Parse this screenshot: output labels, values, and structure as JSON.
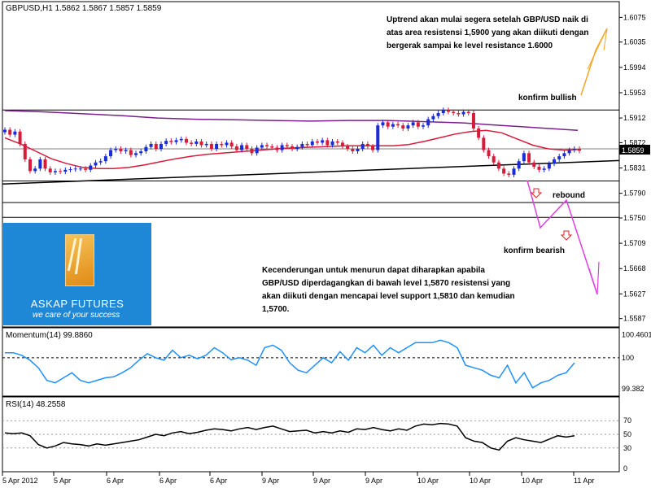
{
  "main_pane": {
    "title": "GBPUSD,H1  1.5862  1.5867  1.5857  1.5859",
    "current_price_label": "1.5859"
  },
  "annotations": {
    "uptrend_note": [
      "Uptrend akan mulai segera setelah GBP/USD naik di",
      "atas area resistensi 1,5900 yang akan diikuti dengan",
      "bergerak sampai ke level resistance 1.6000"
    ],
    "downtrend_note": [
      "Kecenderungan untuk menurun dapat diharapkan apabila",
      "GBP/USD diperdagangkan di bawah level 1,5870 resistensi yang",
      "akan diikuti dengan mencapai level support 1,5810 dan kemudian",
      "1,5700."
    ],
    "bullish_label": "konfirm bullish",
    "bearish_label": "konfirm bearish",
    "rebound_label": "rebound"
  },
  "logo": {
    "brand": "ASKAP FUTURES",
    "slogan": "we care of your success"
  },
  "chart_data": [
    {
      "type": "candlestick",
      "title": "GBPUSD,H1",
      "ohlc_header": {
        "open": 1.5862,
        "high": 1.5867,
        "low": 1.5857,
        "close": 1.5859
      },
      "ylim": [
        1.558,
        1.609
      ],
      "y_ticks": [
        "1.6075",
        "1.6035",
        "1.5994",
        "1.5953",
        "1.5912",
        "1.5872",
        "1.5831",
        "1.5790",
        "1.5750",
        "1.5709",
        "1.5668",
        "1.5627",
        "1.5587"
      ],
      "x_ticks": [
        "5 Apr 2012",
        "5 Apr",
        "6 Apr",
        "6 Apr",
        "6 Apr",
        "9 Apr",
        "9 Apr",
        "9 Apr",
        "10 Apr",
        "10 Apr",
        "10 Apr",
        "11 Apr"
      ],
      "closes": [
        1.5893,
        1.5885,
        1.589,
        1.587,
        1.5845,
        1.5826,
        1.583,
        1.5845,
        1.583,
        1.5824,
        1.5826,
        1.5825,
        1.5828,
        1.5829,
        1.583,
        1.583,
        1.5828,
        1.5835,
        1.584,
        1.5842,
        1.585,
        1.586,
        1.5862,
        1.5858,
        1.586,
        1.5852,
        1.5855,
        1.5858,
        1.5865,
        1.587,
        1.5862,
        1.587,
        1.5875,
        1.5873,
        1.5876,
        1.5878,
        1.5872,
        1.587,
        1.5874,
        1.5868,
        1.587,
        1.5862,
        1.587,
        1.5868,
        1.5872,
        1.5866,
        1.586,
        1.5868,
        1.5862,
        1.5855,
        1.5864,
        1.5868,
        1.5866,
        1.5864,
        1.586,
        1.5868,
        1.5866,
        1.5862,
        1.5865,
        1.587,
        1.5868,
        1.5874,
        1.5872,
        1.5876,
        1.5868,
        1.5874,
        1.5872,
        1.5866,
        1.5862,
        1.5858,
        1.5862,
        1.587,
        1.5866,
        1.586,
        1.59,
        1.5905,
        1.5898,
        1.5902,
        1.59,
        1.5895,
        1.59,
        1.5905,
        1.5898,
        1.59,
        1.591,
        1.5915,
        1.592,
        1.5925,
        1.5922,
        1.592,
        1.5918,
        1.5922,
        1.592,
        1.5895,
        1.588,
        1.586,
        1.585,
        1.584,
        1.583,
        1.5822,
        1.582,
        1.583,
        1.5842,
        1.5855,
        1.584,
        1.5833,
        1.5828,
        1.583,
        1.5838,
        1.5845,
        1.585,
        1.5855,
        1.586,
        1.5862,
        1.5859
      ],
      "series": [
        {
          "name": "MA",
          "color": "#d81b3a",
          "values": [
            1.588,
            1.587,
            1.5858,
            1.5846,
            1.5838,
            1.5832,
            1.583,
            1.583,
            1.5832,
            1.5836,
            1.5841,
            1.5846,
            1.585,
            1.5853,
            1.5855,
            1.5857,
            1.5859,
            1.5861,
            1.5863,
            1.5864,
            1.5865,
            1.5866,
            1.5867,
            1.5867,
            1.5867,
            1.5867,
            1.5869,
            1.5874,
            1.588,
            1.5886,
            1.589,
            1.5892,
            1.5888,
            1.5878,
            1.5868,
            1.5862,
            1.586,
            1.5861
          ]
        },
        {
          "name": "Trend",
          "color": "#7a1f8c",
          "values": [
            1.5924,
            1.5922,
            1.5919,
            1.5916,
            1.5912,
            1.591,
            1.5909,
            1.5908,
            1.5907,
            1.5908,
            1.5908,
            1.5906,
            1.5904,
            1.59,
            1.5896,
            1.5892
          ]
        }
      ],
      "levels": [
        {
          "value": 1.5925,
          "color": "#000000"
        },
        {
          "value": 1.5862,
          "color": "#808080"
        },
        {
          "value": 1.581,
          "color": "#000000"
        },
        {
          "value": 1.5775,
          "color": "#000000"
        },
        {
          "value": 1.5751,
          "color": "#000000"
        }
      ],
      "support_line": {
        "from": 1.5805,
        "to": 1.5843,
        "color": "#000000"
      },
      "colors": {
        "up": "#1a2bd8",
        "down": "#d81b3a",
        "bullish_arrow": "#f5a623",
        "bearish_arrow": "#e040e0"
      }
    },
    {
      "type": "line",
      "title": "Momentum(14) 99.8860",
      "y_ticks": [
        "100.4601",
        "100",
        "99.382"
      ],
      "ylim": [
        99.3,
        100.5
      ],
      "reference": 100,
      "series": [
        {
          "name": "Momentum(14)",
          "color": "#1e90ff",
          "values": [
            100.1,
            100.1,
            100.05,
            99.95,
            99.8,
            99.55,
            99.5,
            99.6,
            99.7,
            99.55,
            99.5,
            99.55,
            99.6,
            99.62,
            99.7,
            99.8,
            99.95,
            100.08,
            100.0,
            99.95,
            100.15,
            100.0,
            100.05,
            99.98,
            100.05,
            100.2,
            100.1,
            99.96,
            100.0,
            99.95,
            99.85,
            100.2,
            100.25,
            100.15,
            99.9,
            99.75,
            99.7,
            99.85,
            100.0,
            99.9,
            100.12,
            99.95,
            100.2,
            100.1,
            100.25,
            100.05,
            100.2,
            100.1,
            100.2,
            100.3,
            100.3,
            100.3,
            100.35,
            100.3,
            100.2,
            99.85,
            99.8,
            99.75,
            99.65,
            99.6,
            99.85,
            99.5,
            99.7,
            99.4,
            99.5,
            99.55,
            99.65,
            99.7,
            99.9
          ]
        }
      ]
    },
    {
      "type": "line",
      "title": "RSI(14) 48.2558",
      "y_ticks": [
        "70",
        "50",
        "30",
        "0"
      ],
      "ylim": [
        0,
        100
      ],
      "levels": [
        70,
        50,
        30
      ],
      "series": [
        {
          "name": "RSI(14)",
          "color": "#000000",
          "values": [
            52,
            51,
            52,
            48,
            35,
            30,
            33,
            38,
            36,
            35,
            33,
            36,
            34,
            36,
            38,
            40,
            42,
            46,
            50,
            48,
            52,
            54,
            51,
            53,
            56,
            58,
            57,
            55,
            58,
            60,
            57,
            60,
            62,
            58,
            54,
            55,
            56,
            52,
            54,
            52,
            55,
            53,
            58,
            57,
            60,
            57,
            55,
            58,
            56,
            62,
            65,
            64,
            66,
            65,
            62,
            45,
            40,
            38,
            30,
            27,
            40,
            45,
            42,
            40,
            38,
            43,
            48,
            46,
            48
          ]
        }
      ]
    }
  ]
}
